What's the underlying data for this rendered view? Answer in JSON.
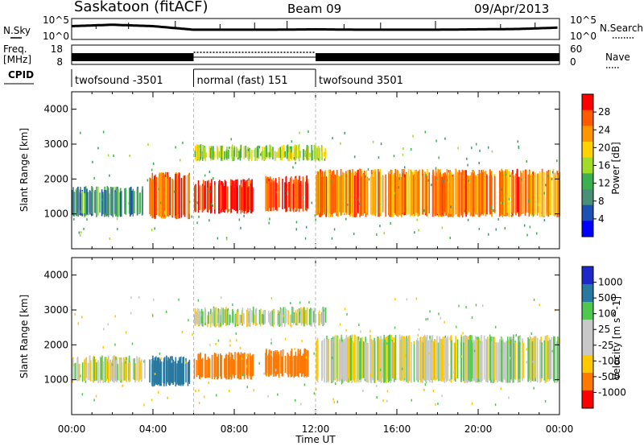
{
  "header": {
    "site": "Saskatoon (fitACF)",
    "beam": "Beam 09",
    "date": "09/Apr/2013"
  },
  "noise_panel": {
    "left_label": "N.Sky",
    "right_label": "N.Search",
    "left_ticks": [
      "10^5",
      "10^0"
    ],
    "right_ticks": [
      "10^5",
      "10^0"
    ]
  },
  "freq_panel": {
    "left_label": "Freq.",
    "left_unit": "[MHz]",
    "left_ticks": [
      "18",
      "8"
    ],
    "right_label": "Nave",
    "right_ticks": [
      "60",
      "0"
    ]
  },
  "cpid": {
    "label": "CPID",
    "segments": [
      {
        "label": "twofsound -3501",
        "start_h": 0,
        "end_h": 6
      },
      {
        "label": "normal (fast) 151",
        "start_h": 6,
        "end_h": 12
      },
      {
        "label": "twofsound 3501",
        "start_h": 12,
        "end_h": 24
      }
    ]
  },
  "power_panel": {
    "ylabel": "Slant Range [km]",
    "yticks": [
      "4000",
      "3000",
      "2000",
      "1000"
    ],
    "colorbar_title": "Power [dB]",
    "colorbar_ticks": [
      "28",
      "24",
      "20",
      "16",
      "12",
      "8",
      "4"
    ],
    "colors": [
      "#ff0000",
      "#ff5a00",
      "#ff9600",
      "#ffd200",
      "#a0dc28",
      "#3caf50",
      "#4a8f78",
      "#1e50b4",
      "#0000ff"
    ]
  },
  "velocity_panel": {
    "ylabel": "Slant Range [km]",
    "yticks": [
      "4000",
      "3000",
      "2000",
      "1000"
    ],
    "colorbar_title": "Velocity [m s^-1]",
    "colorbar_ticks": [
      "1000",
      "500",
      "100",
      "25",
      "-25",
      "-100",
      "-500",
      "-1000"
    ],
    "colors": [
      "#1e28c8",
      "#2878a0",
      "#50c850",
      "#c8c8c8",
      "#c8c8c8",
      "#ffc800",
      "#ff7800",
      "#ff0000"
    ]
  },
  "x_axis": {
    "label": "Time UT",
    "ticks": [
      "00:00",
      "04:00",
      "08:00",
      "12:00",
      "16:00",
      "20:00",
      "00:00"
    ]
  },
  "chart_data": [
    {
      "type": "line",
      "title": "N.Sky / N.Search",
      "x_unit": "hours UT",
      "x": [
        0,
        2,
        4,
        6,
        8,
        10,
        12,
        14,
        16,
        18,
        20,
        22,
        24
      ],
      "y_log10": [
        3.3,
        3.7,
        3.3,
        2.3,
        2.3,
        2.3,
        2.4,
        2.3,
        2.3,
        2.3,
        2.4,
        2.5,
        2.9
      ]
    },
    {
      "type": "line",
      "title": "Freq. [MHz]",
      "x": [
        0,
        6,
        6,
        12,
        12,
        24
      ],
      "y": [
        11,
        11,
        11,
        11,
        11,
        11
      ],
      "ylim": [
        8,
        18
      ]
    },
    {
      "type": "heatmap",
      "title": "Power [dB]",
      "xlim": [
        0,
        24
      ],
      "ylim": [
        0,
        4500
      ],
      "regions": [
        {
          "t_start": 0,
          "t_end": 3.6,
          "r_low": 900,
          "r_high": 1800,
          "power_db": 8
        },
        {
          "t_start": 3.8,
          "t_end": 5.8,
          "r_low": 850,
          "r_high": 2200,
          "power_db": 24
        },
        {
          "t_start": 6.0,
          "t_end": 8.9,
          "r_low": 1000,
          "r_high": 2000,
          "power_db": 28
        },
        {
          "t_start": 9.5,
          "t_end": 11.6,
          "r_low": 1050,
          "r_high": 2100,
          "power_db": 26
        },
        {
          "t_start": 12.0,
          "t_end": 24.0,
          "r_low": 900,
          "r_high": 2300,
          "power_db": 22
        },
        {
          "t_start": 6.0,
          "t_end": 12.5,
          "r_low": 2500,
          "r_high": 3000,
          "power_db": 14
        }
      ]
    },
    {
      "type": "heatmap",
      "title": "Velocity [m s^-1]",
      "xlim": [
        0,
        24
      ],
      "ylim": [
        0,
        4500
      ],
      "regions": [
        {
          "t_start": 0,
          "t_end": 3.6,
          "r_low": 900,
          "r_high": 1700,
          "velocity": 0
        },
        {
          "t_start": 3.8,
          "t_end": 5.8,
          "r_low": 800,
          "r_high": 1700,
          "velocity": 300
        },
        {
          "t_start": 6.0,
          "t_end": 8.9,
          "r_low": 1000,
          "r_high": 1800,
          "velocity": -300
        },
        {
          "t_start": 9.5,
          "t_end": 11.6,
          "r_low": 1050,
          "r_high": 1900,
          "velocity": -300
        },
        {
          "t_start": 12.0,
          "t_end": 24.0,
          "r_low": 900,
          "r_high": 2300,
          "velocity": 0
        },
        {
          "t_start": 6.0,
          "t_end": 12.5,
          "r_low": 2500,
          "r_high": 3100,
          "velocity": 0
        }
      ]
    }
  ]
}
